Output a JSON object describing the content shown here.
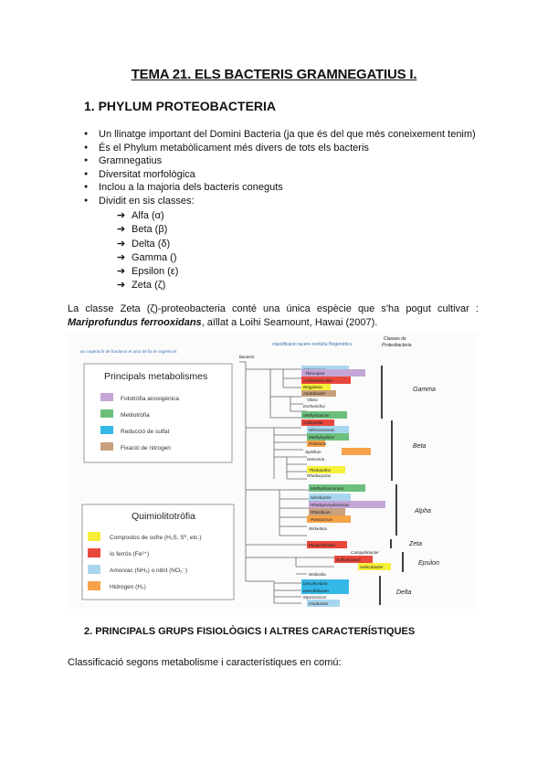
{
  "title": "TEMA 21. ELS BACTERIS GRAMNEGATIUS I.",
  "section1": {
    "heading": "1.  PHYLUM PROTEOBACTERIA",
    "bullets": [
      "Un llinatge important del Domini Bacteria (ja que és del que més coneixement tenim)",
      "És el Phylum metabòlicament més divers de tots els bacteris",
      "Gramnegatius",
      "Diversitat morfològica",
      "Inclou a la majoria dels bacteris coneguts",
      "Dividit en sis classes:"
    ],
    "classes": [
      "Alfa (α)",
      "Beta (β)",
      "Delta (δ)",
      "Gamma ()",
      "Epsilon (ε)",
      "Zeta (ζ)"
    ],
    "arrow": "➔",
    "paragraph_start": "La classe Zeta (ζ)-proteobacteria conté una única espècie que s'ha pogut cultivar :",
    "paragraph_species": "Mariprofundus ferrooxidans",
    "paragraph_end": ", aïllat a Loihi Seamount, Hawai (2007)."
  },
  "figure": {
    "left_caption": "an cogeraciò de fundacio el amo de lla le cogenicos",
    "right_caption": "classificacio tacere evolutiu filogenètics",
    "col_caption_1": "Classes de",
    "col_caption_2": "Proteobacteria",
    "root_label": "Bacteris",
    "legend1": {
      "title": "Principals metabolismes",
      "items": [
        {
          "label": "Fototròfia anoxigènica",
          "color": "#c3a6d6"
        },
        {
          "label": "Metilotròfia",
          "color": "#6cc07c"
        },
        {
          "label": "Reducció de sulfat",
          "color": "#34b8e8"
        },
        {
          "label": "Fixació de nitrogen",
          "color": "#c8a07e"
        }
      ]
    },
    "legend2": {
      "title": "Quimiolitotròfia",
      "items": [
        {
          "label": "Compostos de sofre (H₂S, S⁰, etc.)",
          "color": "#f6f03a"
        },
        {
          "label": "Io ferrós (Fe²⁺)",
          "color": "#e8483c"
        },
        {
          "label": "Amoníac (NH₃) o nitrit (NO₂⁻)",
          "color": "#a9d6ef"
        },
        {
          "label": "Hidrogen (H₂)",
          "color": "#f6a34a"
        }
      ]
    },
    "taxa": [
      {
        "label": "Nitrococcus",
        "color": "#a9d6ef"
      },
      {
        "label": "Thiocapsa",
        "color": "#c3a6d6"
      },
      {
        "label": "Acidithiobacillus",
        "color": "#e8483c"
      },
      {
        "label": "Beggiatoa",
        "color": "#f6f03a"
      },
      {
        "label": "Azotobacter",
        "color": "#c8a07e"
      },
      {
        "label": "Vibrio",
        "color": ""
      },
      {
        "label": "Escherichia",
        "color": ""
      },
      {
        "label": "Methylobacter",
        "color": "#6cc07c"
      },
      {
        "label": "Gallionella",
        "color": "#e8483c"
      },
      {
        "label": "Nitrosomonas",
        "color": "#a9d6ef"
      },
      {
        "label": "Methylophilus",
        "color": "#6cc07c"
      },
      {
        "label": "Ralstonia",
        "color": "#f6a34a"
      },
      {
        "label": "Spirillum",
        "color": ""
      },
      {
        "label": "Neisseria",
        "color": ""
      },
      {
        "label": "Thiobacillus",
        "color": "#f6f03a"
      },
      {
        "label": "Rhodocyclus",
        "color": "#c3a6d6"
      },
      {
        "label": "Methylobacterium",
        "color": "#6cc07c"
      },
      {
        "label": "Nitrobacter",
        "color": "#a9d6ef"
      },
      {
        "label": "Rhodopseudomonas",
        "color": "#c3a6d6"
      },
      {
        "label": "Rhizobium",
        "color": "#c8a07e"
      },
      {
        "label": "Paracoccus",
        "color": "#f6a34a"
      },
      {
        "label": "Rickettsia",
        "color": ""
      },
      {
        "label": "Mariprofundus",
        "color": "#e8483c"
      },
      {
        "label": "Campylobacter",
        "color": ""
      },
      {
        "label": "Sulfurimonas",
        "color": "#f6f03a"
      },
      {
        "label": "Helicobacter",
        "color": ""
      },
      {
        "label": "Wolinella",
        "color": ""
      },
      {
        "label": "Desulfovibrio",
        "color": "#34b8e8"
      },
      {
        "label": "Desulfobacter",
        "color": "#34b8e8"
      },
      {
        "label": "Myxococcus",
        "color": ""
      },
      {
        "label": "Geobacter",
        "color": "#a9d6ef"
      }
    ],
    "class_labels": [
      "Gamma",
      "Beta",
      "Alpha",
      "Zeta",
      "Epsilon",
      "Delta"
    ]
  },
  "section2": {
    "heading": "2.  PRINCIPALS GRUPS FISIOLÒGICS I ALTRES CARACTERÍSTIQUES",
    "text": "Classificació segons metabolisme i característiques en comú:"
  }
}
